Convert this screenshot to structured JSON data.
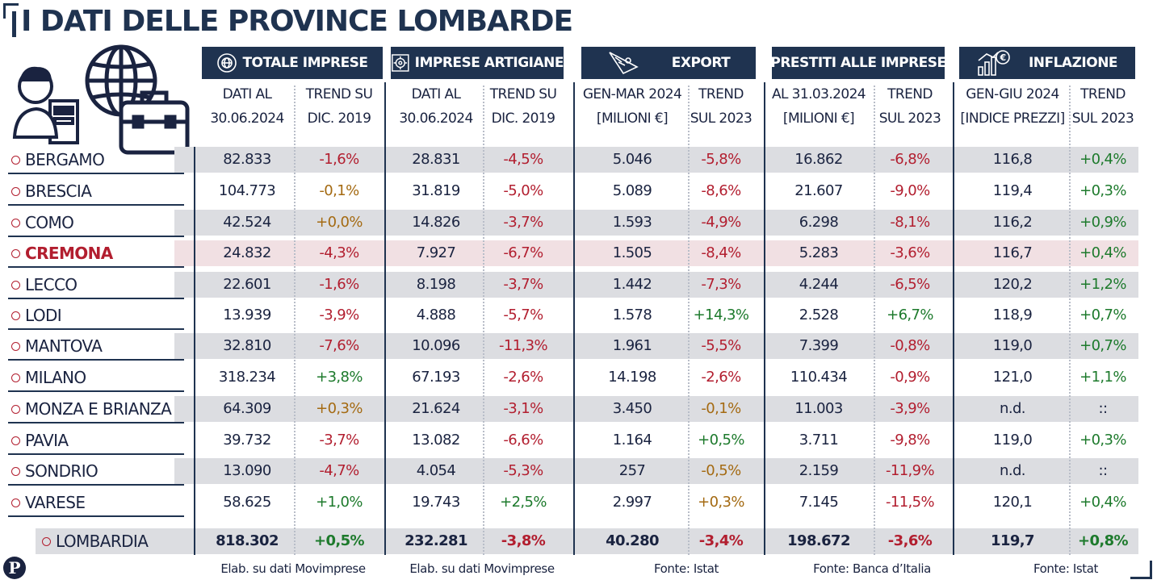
{
  "title": "I DATI DELLE PROVINCE LOMBARDE",
  "groups": [
    {
      "label": "TOTALE IMPRESE",
      "icon": "globe-badge-icon",
      "col1": [
        "DATI AL",
        "30.06.2024"
      ],
      "col2": [
        "TREND SU",
        "DIC. 2019"
      ],
      "source": "Elab. su dati Movimprese"
    },
    {
      "label": "IMPRESE ARTIGIANE",
      "icon": "gear-hammer-icon",
      "col1": [
        "DATI AL",
        "30.06.2024"
      ],
      "col2": [
        "TREND SU",
        "DIC. 2019"
      ],
      "source": "Elab. su dati Movimprese"
    },
    {
      "label": "EXPORT",
      "icon": "ship-icon",
      "col1": [
        "GEN-MAR 2024",
        "[MILIONI €]"
      ],
      "col2": [
        "TREND",
        "SUL 2023"
      ],
      "source": "Fonte: Istat"
    },
    {
      "label": "PRESTITI ALLE IMPRESE",
      "icon": "",
      "col1": [
        "AL 31.03.2024",
        "[MILIONI €]"
      ],
      "col2": [
        "TREND",
        "SUL 2023"
      ],
      "source": "Fonte: Banca d’Italia"
    },
    {
      "label": "INFLAZIONE",
      "icon": "euro-growth-icon",
      "col1": [
        "GEN-GIU 2024",
        "[INDICE PREZZI]"
      ],
      "col2": [
        "TREND",
        "SUL 2023"
      ],
      "source": "Fonte: Istat"
    }
  ],
  "colors": {
    "navy": "#1f3350",
    "negative": "#b21e2f",
    "positive": "#1d7a2c",
    "neutral": "#a46a12",
    "row_grey": "#dcdde1",
    "row_highlight": "#f1e0e3"
  },
  "chart_data": {
    "type": "table",
    "title": "I DATI DELLE PROVINCE LOMBARDE",
    "columns": [
      "Totale imprese dati al 30.06.2024",
      "Totale imprese trend su dic. 2019",
      "Imprese artigiane dati al 30.06.2024",
      "Imprese artigiane trend su dic. 2019",
      "Export gen-mar 2024 [milioni €]",
      "Export trend sul 2023",
      "Prestiti alle imprese al 31.03.2024 [milioni €]",
      "Prestiti trend sul 2023",
      "Inflazione gen-giu 2024 [indice prezzi]",
      "Inflazione trend sul 2023"
    ],
    "highlight": "CREMONA",
    "rows": [
      {
        "name": "BERGAMO",
        "values": [
          "82.833",
          "-1,6%",
          "28.831",
          "-4,5%",
          "5.046",
          "-5,8%",
          "16.862",
          "-6,8%",
          "116,8",
          "+0,4%"
        ]
      },
      {
        "name": "BRESCIA",
        "values": [
          "104.773",
          "-0,1%",
          "31.819",
          "-5,0%",
          "5.089",
          "-8,6%",
          "21.607",
          "-9,0%",
          "119,4",
          "+0,3%"
        ]
      },
      {
        "name": "COMO",
        "values": [
          "42.524",
          "+0,0%",
          "14.826",
          "-3,7%",
          "1.593",
          "-4,9%",
          "6.298",
          "-8,1%",
          "116,2",
          "+0,9%"
        ]
      },
      {
        "name": "CREMONA",
        "values": [
          "24.832",
          "-4,3%",
          "7.927",
          "-6,7%",
          "1.505",
          "-8,4%",
          "5.283",
          "-3,6%",
          "116,7",
          "+0,4%"
        ]
      },
      {
        "name": "LECCO",
        "values": [
          "22.601",
          "-1,6%",
          "8.198",
          "-3,7%",
          "1.442",
          "-7,3%",
          "4.244",
          "-6,5%",
          "120,2",
          "+1,2%"
        ]
      },
      {
        "name": "LODI",
        "values": [
          "13.939",
          "-3,9%",
          "4.888",
          "-5,7%",
          "1.578",
          "+14,3%",
          "2.528",
          "+6,7%",
          "118,9",
          "+0,7%"
        ]
      },
      {
        "name": "MANTOVA",
        "values": [
          "32.810",
          "-7,6%",
          "10.096",
          "-11,3%",
          "1.961",
          "-5,5%",
          "7.399",
          "-0,8%",
          "119,0",
          "+0,7%"
        ]
      },
      {
        "name": "MILANO",
        "values": [
          "318.234",
          "+3,8%",
          "67.193",
          "-2,6%",
          "14.198",
          "-2,6%",
          "110.434",
          "-0,9%",
          "121,0",
          "+1,1%"
        ]
      },
      {
        "name": "MONZA E BRIANZA",
        "values": [
          "64.309",
          "+0,3%",
          "21.624",
          "-3,1%",
          "3.450",
          "-0,1%",
          "11.003",
          "-3,9%",
          "n.d.",
          "::"
        ]
      },
      {
        "name": "PAVIA",
        "values": [
          "39.732",
          "-3,7%",
          "13.082",
          "-6,6%",
          "1.164",
          "+0,5%",
          "3.711",
          "-9,8%",
          "119,0",
          "+0,3%"
        ]
      },
      {
        "name": "SONDRIO",
        "values": [
          "13.090",
          "-4,7%",
          "4.054",
          "-5,3%",
          "257",
          "-0,5%",
          "2.159",
          "-11,9%",
          "n.d.",
          "::"
        ]
      },
      {
        "name": "VARESE",
        "values": [
          "58.625",
          "+1,0%",
          "19.743",
          "+2,5%",
          "2.997",
          "+0,3%",
          "7.145",
          "-11,5%",
          "120,1",
          "+0,4%"
        ]
      }
    ],
    "total": {
      "name": "LOMBARDIA",
      "values": [
        "818.302",
        "+0,5%",
        "232.281",
        "-3,8%",
        "40.280",
        "-3,4%",
        "198.672",
        "-3,6%",
        "119,7",
        "+0,8%"
      ]
    }
  },
  "logo_text": "P"
}
